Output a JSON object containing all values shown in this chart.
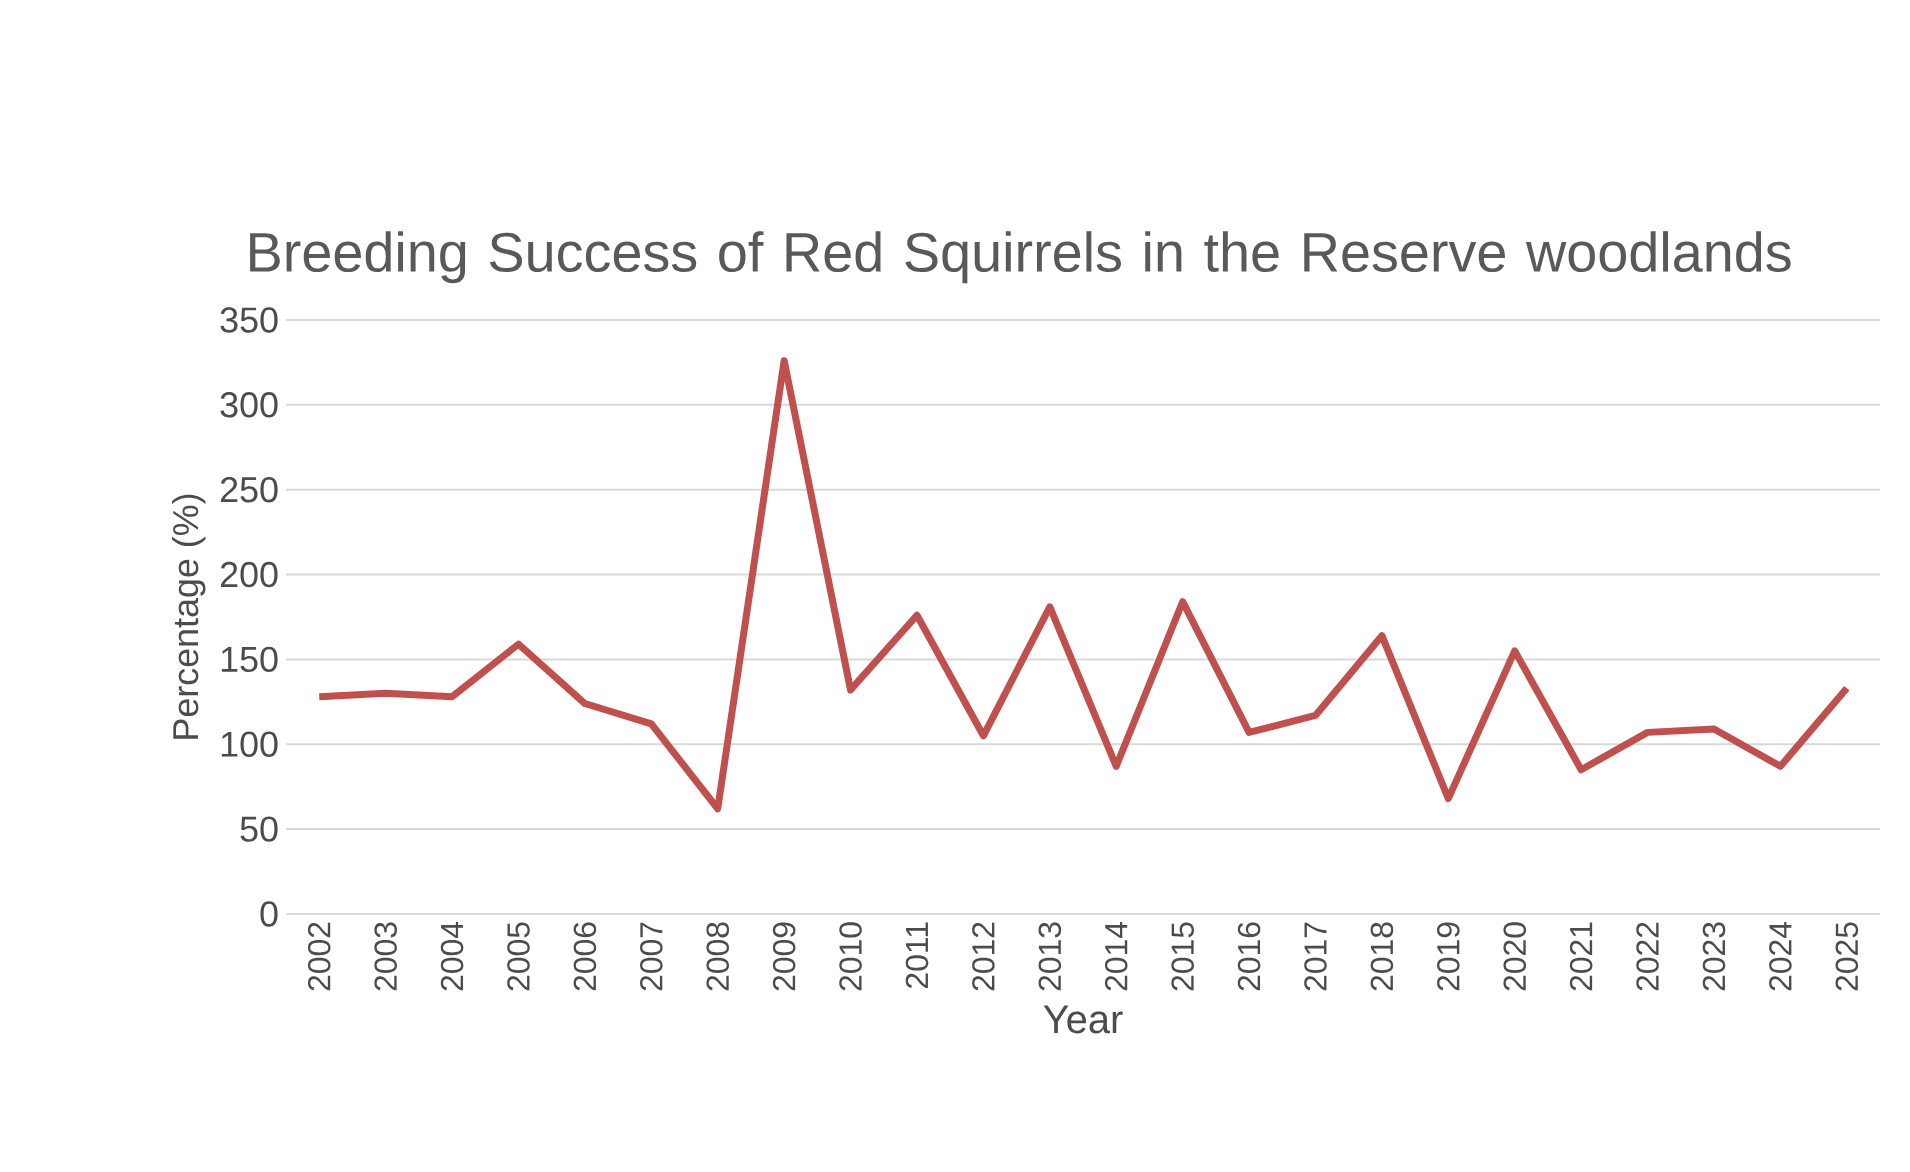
{
  "chart_data": {
    "type": "line",
    "title": "Breeding Success of Red Squirrels in the Reserve woodlands",
    "xlabel": "Year",
    "ylabel": "Percentage (%)",
    "categories": [
      "2002",
      "2003",
      "2004",
      "2005",
      "2006",
      "2007",
      "2008",
      "2009",
      "2010",
      "2011",
      "2012",
      "2013",
      "2014",
      "2015",
      "2016",
      "2017",
      "2018",
      "2019",
      "2020",
      "2021",
      "2022",
      "2023",
      "2024",
      "2025"
    ],
    "series": [
      {
        "color": "#c0504d",
        "values": [
          128,
          130,
          128,
          159,
          124,
          112,
          62,
          326,
          132,
          176,
          105,
          181,
          87,
          184,
          107,
          117,
          164,
          68,
          155,
          85,
          107,
          109,
          87,
          133
        ]
      }
    ],
    "ylim": [
      0,
      350
    ],
    "yticks": [
      0,
      50,
      100,
      150,
      200,
      250,
      300,
      350
    ],
    "grid": "y",
    "marker": "none",
    "line_style": "solid"
  }
}
